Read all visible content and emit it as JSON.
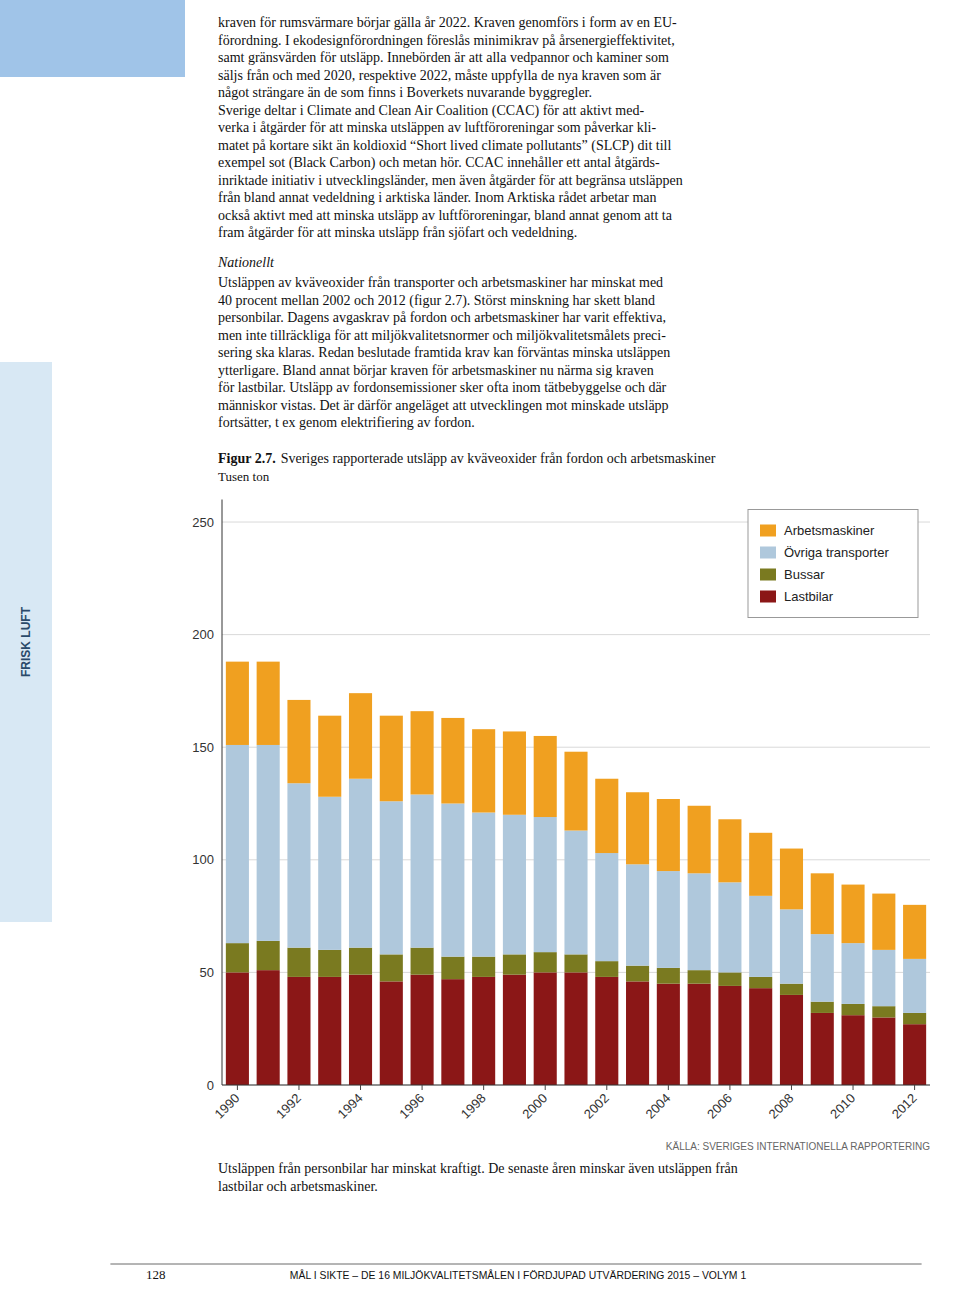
{
  "chart_data": {
    "type": "bar",
    "stacked": true,
    "title": "Figur 2.7.",
    "subtitle": "Sveriges rapporterade utsläpp av kväveoxider från fordon och arbetsmaskiner",
    "ylabel": "Tusen ton",
    "annotations": [
      "KÄLLA: SVERIGES INTERNATIONELLA RAPPORTERING"
    ],
    "categories": [
      "1990",
      null,
      "1992",
      null,
      "1994",
      null,
      "1996",
      null,
      "1998",
      null,
      "2000",
      null,
      "2002",
      null,
      "2004",
      null,
      "2006",
      null,
      "2008",
      null,
      "2010",
      null,
      "2012"
    ],
    "series": [
      {
        "name": "Lastbilar",
        "color": "#8B1717",
        "values": [
          50,
          51,
          48,
          48,
          49,
          46,
          49,
          47,
          48,
          49,
          50,
          50,
          48,
          46,
          45,
          45,
          44,
          43,
          40,
          32,
          31,
          30,
          27
        ]
      },
      {
        "name": "Bussar",
        "color": "#7A7A20",
        "values": [
          13,
          13,
          13,
          12,
          12,
          12,
          12,
          10,
          9,
          9,
          9,
          8,
          7,
          7,
          7,
          6,
          6,
          5,
          5,
          5,
          5,
          5,
          5
        ]
      },
      {
        "name": "Övriga transporter",
        "color": "#AFC8DC",
        "values": [
          88,
          87,
          73,
          68,
          75,
          68,
          68,
          68,
          64,
          62,
          60,
          55,
          48,
          45,
          43,
          43,
          40,
          36,
          33,
          30,
          27,
          25,
          24
        ]
      },
      {
        "name": "Arbetsmaskiner",
        "color": "#F0A020",
        "values": [
          37,
          37,
          37,
          36,
          38,
          38,
          37,
          38,
          37,
          37,
          36,
          35,
          33,
          32,
          32,
          30,
          28,
          28,
          27,
          27,
          26,
          25,
          24
        ]
      }
    ],
    "ylim": [
      0,
      260
    ],
    "yticks": [
      0,
      50,
      100,
      150,
      200,
      250
    ],
    "grid": true,
    "legend": "upper right"
  },
  "sidebar_label": "FRISK LUFT",
  "page_text_lines": [
    "kraven för rumsvärmare börjar gälla år 2022. Kraven genomförs i form av en EU-",
    "förordning. I ekodesignförordningen föreslås minimikrav på årsenergieffektivitet,",
    "samt gränsvärden för utsläpp. Innebörden är att alla vedpannor och kaminer som",
    "säljs från och med 2020, respektive 2022, måste uppfylla de nya kraven som är",
    "något strängare än de som finns i Boverkets nuvarande byggregler.",
    "   Sverige deltar i Climate and Clean Air Coalition (CCAC) för att aktivt med-",
    "verka i åtgärder för att minska utsläppen av luftföroreningar som påverkar kli-",
    "matet på kortare sikt än koldioxid “Short lived climate pollutants” (SLCP) dit till",
    "exempel sot (Black Carbon) och metan hör. CCAC innehåller ett antal åtgärds-",
    "inriktade initiativ i utvecklingsländer, men även åtgärder för att begränsa utsläppen",
    "från bland annat vedeldning i arktiska länder. Inom Arktiska rådet arbetar man",
    "också aktivt med att minska utsläpp av luftföroreningar, bland annat genom att ta",
    "fram åtgärder för att minska utsläpp från sjöfart och vedeldning."
  ],
  "nationellt": "Nationellt",
  "body_lines": [
    "Utsläppen av kväveoxider från transporter och arbetsmaskiner har minskat med",
    "40 procent mellan 2002 och 2012 (figur 2.7). Störst minskning har skett bland",
    "personbilar. Dagens avgaskrav på fordon och arbetsmaskiner har varit effektiva,",
    "men inte tillräckliga för att miljökvalitetsnormer och miljökvalitetsmålets preci-",
    "sering ska klaras. Redan beslutade framtida krav kan förväntas minska utsläppen",
    "ytterligare. Bland annat börjar kraven för arbetsmaskiner nu närma sig kraven",
    "för lastbilar. Utsläpp av fordonsemissioner sker ofta inom tätbebyggelse och där",
    "människor vistas. Det är därför angeläget att utvecklingen mot minskade utsläpp",
    "fortsätter, t ex genom elektrifiering av fordon."
  ],
  "caption_lines": [
    "Utsläppen från personbilar har minskat kraftigt. De senaste åren minskar även utsläppen från",
    "lastbilar och arbetsmaskiner."
  ],
  "footer_num": "128",
  "footer_text": "MÅL I SIKTE – DE 16 MILJÖKVALITETSMÅLEN I FÖRDJUPAD UTVÄRDERING 2015 – VOLYM 1"
}
